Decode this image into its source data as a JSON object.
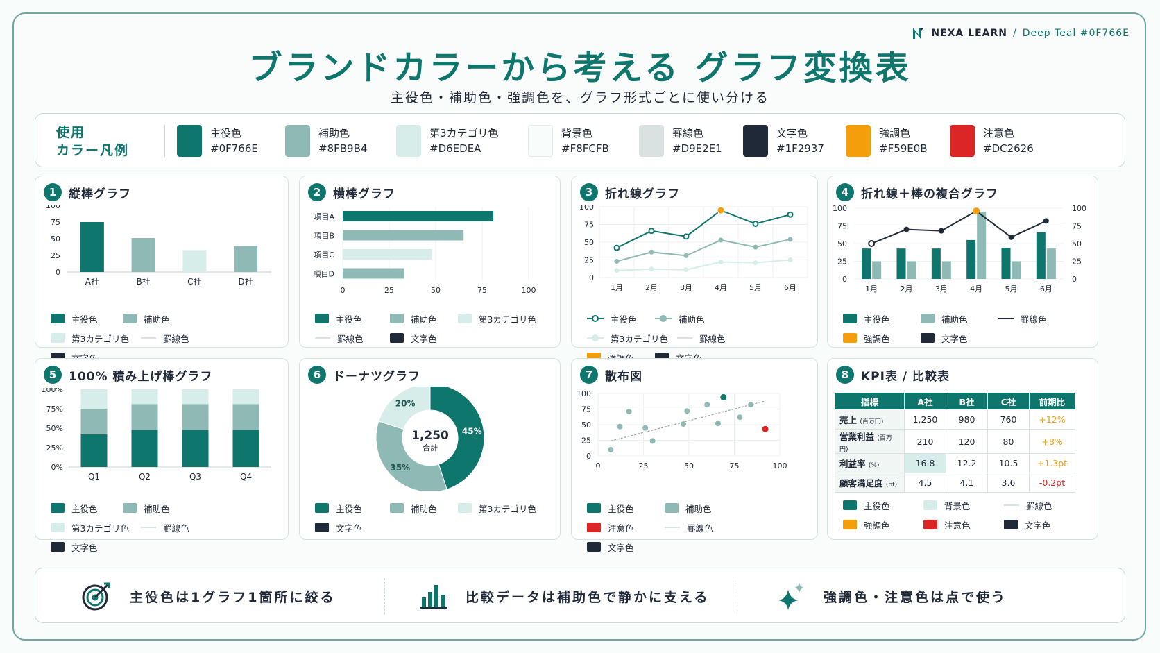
{
  "header": {
    "brand_name": "NEXA LEARN",
    "brand_sep": "/",
    "brand_theme": "Deep Teal #0F766E",
    "title": "ブランドカラーから考える グラフ変換表",
    "subtitle": "主役色・補助色・強調色を、グラフ形式ごとに使い分ける"
  },
  "colors": {
    "primary": "#0F766E",
    "secondary": "#8FB9B4",
    "third": "#D6EDEA",
    "background": "#F8FCFB",
    "rule": "#D9E2E1",
    "text": "#1F2937",
    "accent": "#F59E0B",
    "warning": "#DC2626"
  },
  "palette": {
    "title": "使用\nカラー凡例",
    "items": [
      {
        "name": "主役色",
        "hex": "#0F766E"
      },
      {
        "name": "補助色",
        "hex": "#8FB9B4"
      },
      {
        "name": "第3カテゴリ色",
        "hex": "#D6EDEA"
      },
      {
        "name": "背景色",
        "hex": "#F8FCFB"
      },
      {
        "name": "罫線色",
        "hex": "#D9E2E1"
      },
      {
        "name": "文字色",
        "hex": "#1F2937"
      },
      {
        "name": "強調色",
        "hex": "#F59E0B"
      },
      {
        "name": "注意色",
        "hex": "#DC2626"
      }
    ]
  },
  "legend_labels": {
    "primary": "主役色",
    "secondary": "補助色",
    "third": "第3カテゴリ色",
    "background": "背景色",
    "rule": "罫線色",
    "text": "文字色",
    "accent": "強調色",
    "warning": "注意色"
  },
  "cards": [
    {
      "num": "1",
      "title": "縦棒グラフ"
    },
    {
      "num": "2",
      "title": "横棒グラフ"
    },
    {
      "num": "3",
      "title": "折れ線グラフ"
    },
    {
      "num": "4",
      "title": "折れ線＋棒の複合グラフ"
    },
    {
      "num": "5",
      "title": "100% 積み上げ棒グラフ"
    },
    {
      "num": "6",
      "title": "ドーナツグラフ"
    },
    {
      "num": "7",
      "title": "散布図"
    },
    {
      "num": "8",
      "title": "KPI表 / 比較表"
    }
  ],
  "chart_data": [
    {
      "type": "bar",
      "title": "縦棒グラフ",
      "categories": [
        "A社",
        "B社",
        "C社",
        "D社"
      ],
      "values": [
        75,
        51,
        33,
        39
      ],
      "colors": [
        "#0F766E",
        "#8FB9B4",
        "#D6EDEA",
        "#8FB9B4"
      ],
      "ylim": [
        0,
        100
      ],
      "yticks": [
        "0",
        "25",
        "50",
        "75",
        "100"
      ]
    },
    {
      "type": "bar",
      "orientation": "horizontal",
      "title": "横棒グラフ",
      "categories": [
        "項目A",
        "項目B",
        "項目C",
        "項目D"
      ],
      "values": [
        81,
        65,
        48,
        33
      ],
      "colors": [
        "#0F766E",
        "#8FB9B4",
        "#D6EDEA",
        "#8FB9B4"
      ],
      "xlim": [
        0,
        100
      ],
      "xticks": [
        "0",
        "25",
        "50",
        "75",
        "100"
      ]
    },
    {
      "type": "line",
      "title": "折れ線グラフ",
      "categories": [
        "1月",
        "2月",
        "3月",
        "4月",
        "5月",
        "6月"
      ],
      "series": [
        {
          "values": [
            42,
            66,
            58,
            95,
            76,
            89
          ],
          "color": "#0F766E",
          "highlight_index": 3
        },
        {
          "values": [
            23,
            36,
            31,
            53,
            43,
            54
          ],
          "color": "#8FB9B4"
        },
        {
          "values": [
            10,
            12,
            11,
            22,
            21,
            25
          ],
          "color": "#D6EDEA"
        }
      ],
      "ylim": [
        0,
        100
      ],
      "yticks": [
        "0",
        "25",
        "50",
        "75",
        "100"
      ]
    },
    {
      "type": "bar",
      "subtype": "combo",
      "title": "折れ線＋棒の複合グラフ",
      "categories": [
        "1月",
        "2月",
        "3月",
        "4月",
        "5月",
        "6月"
      ],
      "bars": [
        {
          "values": [
            43,
            43,
            43,
            55,
            44,
            66
          ],
          "color": "#0F766E"
        },
        {
          "values": [
            25,
            25,
            25,
            95,
            25,
            43
          ],
          "color": "#8FB9B4"
        }
      ],
      "line": {
        "values": [
          50,
          70,
          68,
          96,
          59,
          82
        ],
        "color": "#1F2937",
        "highlight_index": 3
      },
      "ylim": [
        0,
        100
      ],
      "yticks": [
        "0",
        "25",
        "50",
        "75",
        "100"
      ]
    },
    {
      "type": "bar",
      "subtype": "stacked100",
      "title": "100% 積み上げ棒グラフ",
      "categories": [
        "Q1",
        "Q2",
        "Q3",
        "Q4"
      ],
      "series": [
        {
          "values": [
            42,
            48,
            48,
            48
          ],
          "color": "#0F766E"
        },
        {
          "values": [
            33,
            33,
            33,
            33
          ],
          "color": "#8FB9B4"
        },
        {
          "values": [
            25,
            19,
            19,
            19
          ],
          "color": "#D6EDEA"
        }
      ],
      "ylim": [
        0,
        100
      ],
      "yticks": [
        "0%",
        "25%",
        "50%",
        "75%",
        "100%"
      ]
    },
    {
      "type": "pie",
      "subtype": "donut",
      "title": "ドーナツグラフ",
      "slices": [
        {
          "value": 45,
          "label": "45%",
          "color": "#0F766E"
        },
        {
          "value": 35,
          "label": "35%",
          "color": "#8FB9B4"
        },
        {
          "value": 20,
          "label": "20%",
          "color": "#D6EDEA"
        }
      ],
      "center_value": "1,250",
      "center_label": "合計"
    },
    {
      "type": "scatter",
      "title": "散布図",
      "points": [
        {
          "x": 7,
          "y": 10
        },
        {
          "x": 12,
          "y": 47
        },
        {
          "x": 17,
          "y": 71
        },
        {
          "x": 26,
          "y": 45
        },
        {
          "x": 30,
          "y": 24
        },
        {
          "x": 47,
          "y": 51
        },
        {
          "x": 49,
          "y": 72
        },
        {
          "x": 60,
          "y": 82
        },
        {
          "x": 66,
          "y": 52
        },
        {
          "x": 78,
          "y": 62
        },
        {
          "x": 84,
          "y": 82
        }
      ],
      "highlight_point": {
        "x": 69,
        "y": 94,
        "color": "#0F766E"
      },
      "warning_point": {
        "x": 92,
        "y": 43,
        "color": "#DC2626"
      },
      "trend": {
        "from": [
          7,
          24
        ],
        "to": [
          92,
          88
        ]
      },
      "xlim": [
        0,
        100
      ],
      "ylim": [
        0,
        100
      ],
      "xticks": [
        "0",
        "25",
        "50",
        "75",
        "100"
      ],
      "yticks": [
        "0",
        "25",
        "50",
        "75",
        "100"
      ]
    },
    {
      "type": "table",
      "title": "KPI表 / 比較表",
      "headers": [
        "指標",
        "A社",
        "B社",
        "C社",
        "前期比"
      ],
      "rows": [
        {
          "label": "売上",
          "unit": "(百万円)",
          "cells": [
            "1,250",
            "980",
            "760"
          ],
          "delta": "+12%",
          "delta_type": "pos"
        },
        {
          "label": "営業利益",
          "unit": "(百万円)",
          "cells": [
            "210",
            "120",
            "80"
          ],
          "delta": "+8%",
          "delta_type": "pos"
        },
        {
          "label": "利益率",
          "unit": "(%)",
          "cells": [
            "16.8",
            "12.2",
            "10.5"
          ],
          "delta": "+1.3pt",
          "delta_type": "pos",
          "highlight": true
        },
        {
          "label": "顧客満足度",
          "unit": "(pt)",
          "cells": [
            "4.5",
            "4.1",
            "3.6"
          ],
          "delta": "-0.2pt",
          "delta_type": "neg"
        }
      ]
    }
  ],
  "tips": [
    {
      "icon": "target-icon",
      "text": "主役色は1グラフ1箇所に絞る"
    },
    {
      "icon": "bar-chart-icon",
      "text": "比較データは補助色で静かに支える"
    },
    {
      "icon": "sparkle-icon",
      "text": "強調色・注意色は点で使う"
    }
  ]
}
